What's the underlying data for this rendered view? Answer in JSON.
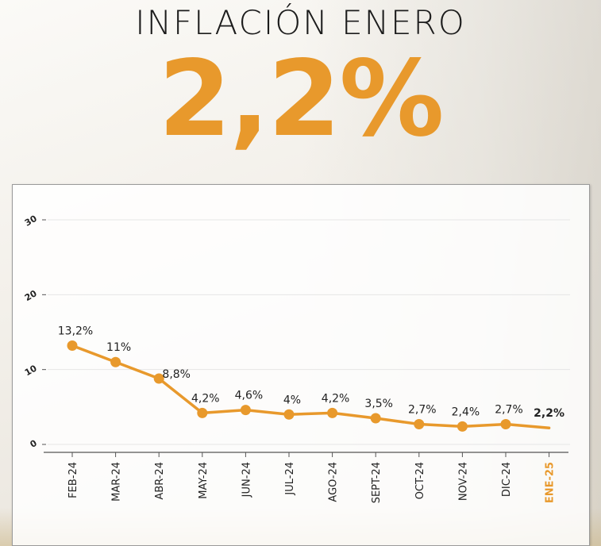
{
  "header": {
    "title": "INFLACIÓN ENERO",
    "headline_value": "2,2%"
  },
  "colors": {
    "accent": "#e8992c",
    "text": "#1c1c1c"
  },
  "chart_data": {
    "type": "line",
    "categories": [
      "FEB-24",
      "MAR-24",
      "ABR-24",
      "MAY-24",
      "JUN-24",
      "JUL-24",
      "AGO-24",
      "SEPT-24",
      "OCT-24",
      "NOV-24",
      "DIC-24",
      "ENE-25"
    ],
    "values": [
      13.2,
      11,
      8.8,
      4.2,
      4.6,
      4,
      4.2,
      3.5,
      2.7,
      2.4,
      2.7,
      2.2
    ],
    "data_labels": [
      "13,2%",
      "11%",
      "8,8%",
      "4,2%",
      "4,6%",
      "4%",
      "4,2%",
      "3,5%",
      "2,7%",
      "2,4%",
      "2,7%",
      "2,2%"
    ],
    "yticks": [
      0,
      10,
      20,
      30
    ],
    "ylim": [
      0,
      30
    ],
    "grid": true,
    "highlight_last": true,
    "series_color": "#e8992c"
  }
}
